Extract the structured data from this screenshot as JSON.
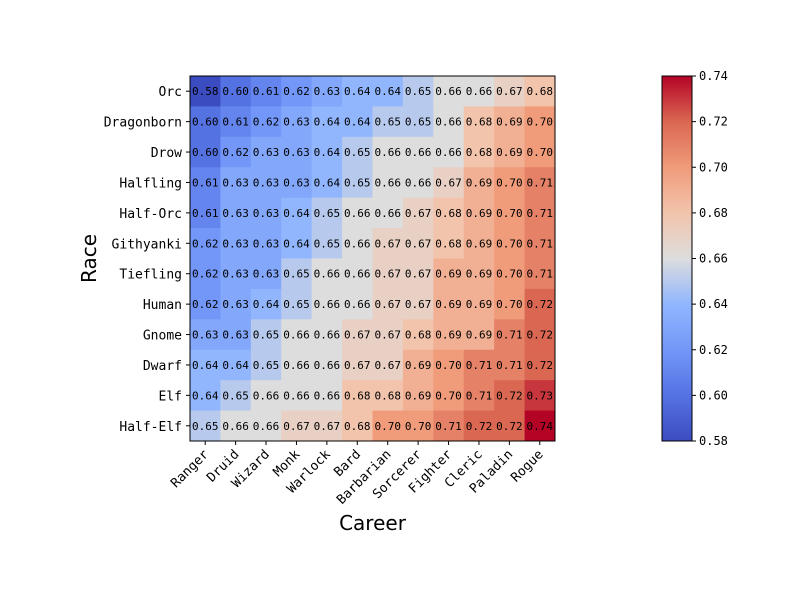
{
  "chart_data": {
    "type": "heatmap",
    "xlabel": "Career",
    "ylabel": "Race",
    "x_categories": [
      "Ranger",
      "Druid",
      "Wizard",
      "Monk",
      "Warlock",
      "Bard",
      "Barbarian",
      "Sorcerer",
      "Fighter",
      "Cleric",
      "Paladin",
      "Rogue"
    ],
    "y_categories": [
      "Orc",
      "Dragonborn",
      "Drow",
      "Halfling",
      "Half-Orc",
      "Githyanki",
      "Tiefling",
      "Human",
      "Gnome",
      "Dwarf",
      "Elf",
      "Half-Elf"
    ],
    "values": [
      [
        0.58,
        0.6,
        0.61,
        0.62,
        0.63,
        0.64,
        0.64,
        0.65,
        0.66,
        0.66,
        0.67,
        0.68
      ],
      [
        0.6,
        0.61,
        0.62,
        0.63,
        0.64,
        0.64,
        0.65,
        0.65,
        0.66,
        0.68,
        0.69,
        0.7
      ],
      [
        0.6,
        0.62,
        0.63,
        0.63,
        0.64,
        0.65,
        0.66,
        0.66,
        0.66,
        0.68,
        0.69,
        0.7
      ],
      [
        0.61,
        0.63,
        0.63,
        0.63,
        0.64,
        0.65,
        0.66,
        0.66,
        0.67,
        0.69,
        0.7,
        0.71
      ],
      [
        0.61,
        0.63,
        0.63,
        0.64,
        0.65,
        0.66,
        0.66,
        0.67,
        0.68,
        0.69,
        0.7,
        0.71
      ],
      [
        0.62,
        0.63,
        0.63,
        0.64,
        0.65,
        0.66,
        0.67,
        0.67,
        0.68,
        0.69,
        0.7,
        0.71
      ],
      [
        0.62,
        0.63,
        0.63,
        0.65,
        0.66,
        0.66,
        0.67,
        0.67,
        0.69,
        0.69,
        0.7,
        0.71
      ],
      [
        0.62,
        0.63,
        0.64,
        0.65,
        0.66,
        0.66,
        0.67,
        0.67,
        0.69,
        0.69,
        0.7,
        0.72
      ],
      [
        0.63,
        0.63,
        0.65,
        0.66,
        0.66,
        0.67,
        0.67,
        0.68,
        0.69,
        0.69,
        0.71,
        0.72
      ],
      [
        0.64,
        0.64,
        0.65,
        0.66,
        0.66,
        0.67,
        0.67,
        0.69,
        0.7,
        0.71,
        0.71,
        0.72
      ],
      [
        0.64,
        0.65,
        0.66,
        0.66,
        0.66,
        0.68,
        0.68,
        0.69,
        0.7,
        0.71,
        0.72,
        0.73
      ],
      [
        0.65,
        0.66,
        0.66,
        0.67,
        0.67,
        0.68,
        0.7,
        0.7,
        0.71,
        0.72,
        0.72,
        0.74
      ]
    ],
    "value_format": "0.00",
    "colormap": "coolwarm",
    "colorbar": {
      "range": [
        0.58,
        0.74
      ],
      "ticks": [
        "0.58",
        "0.60",
        "0.62",
        "0.64",
        "0.66",
        "0.68",
        "0.70",
        "0.72",
        "0.74"
      ]
    },
    "x_tick_rotation": 45,
    "grid": false,
    "legend": "colorbar-right"
  }
}
